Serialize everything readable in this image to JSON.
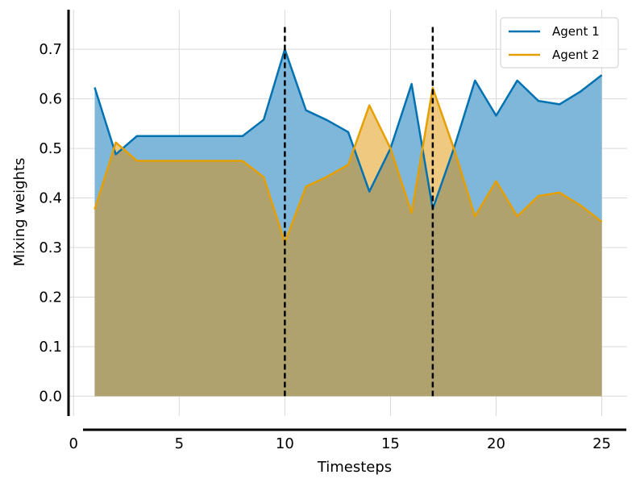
{
  "chart_data": {
    "type": "area",
    "title": "",
    "xlabel": "Timesteps",
    "ylabel": "Mixing weights",
    "xlim": [
      -0.2,
      26.2
    ],
    "ylim": [
      -0.04,
      0.78
    ],
    "xticks": [
      0,
      5,
      10,
      15,
      20,
      25
    ],
    "yticks": [
      0.0,
      0.1,
      0.2,
      0.3,
      0.4,
      0.5,
      0.6,
      0.7
    ],
    "ytick_labels": [
      "0.0",
      "0.1",
      "0.2",
      "0.3",
      "0.4",
      "0.5",
      "0.6",
      "0.7"
    ],
    "grid": true,
    "legend_position": "top-right",
    "x": [
      1,
      2,
      3,
      4,
      5,
      6,
      7,
      8,
      9,
      10,
      11,
      12,
      13,
      14,
      15,
      16,
      17,
      18,
      19,
      20,
      21,
      22,
      23,
      24,
      25
    ],
    "series": [
      {
        "name": "Agent 1",
        "color": "#0072B2",
        "fill_color": "#7FB7DA",
        "values": [
          0.623,
          0.488,
          0.525,
          0.525,
          0.525,
          0.525,
          0.525,
          0.525,
          0.558,
          0.7,
          0.577,
          0.557,
          0.533,
          0.413,
          0.5,
          0.63,
          0.378,
          0.5,
          0.637,
          0.566,
          0.637,
          0.596,
          0.589,
          0.615,
          0.648
        ]
      },
      {
        "name": "Agent 2",
        "color": "#E69F00",
        "fill_color": "#EFC97F",
        "values": [
          0.377,
          0.512,
          0.475,
          0.475,
          0.475,
          0.475,
          0.475,
          0.475,
          0.442,
          0.31,
          0.423,
          0.443,
          0.467,
          0.587,
          0.5,
          0.37,
          0.622,
          0.5,
          0.363,
          0.434,
          0.363,
          0.404,
          0.411,
          0.385,
          0.352
        ]
      }
    ],
    "overlap_color": "#AFA26F",
    "vertical_lines": [
      {
        "x": 10,
        "y_top": 0.745,
        "style": "dashed",
        "color": "#000000"
      },
      {
        "x": 17,
        "y_top": 0.745,
        "style": "dashed",
        "color": "#000000"
      }
    ]
  }
}
